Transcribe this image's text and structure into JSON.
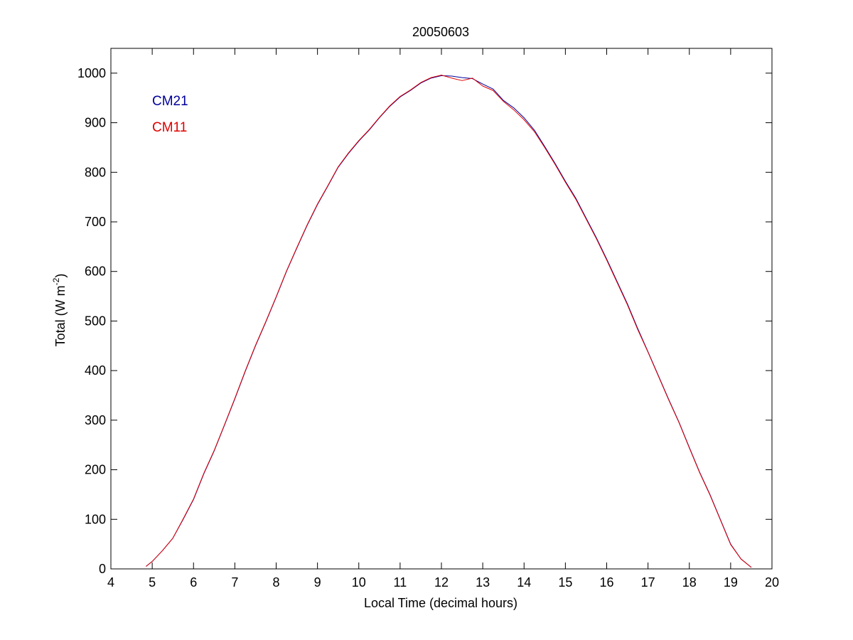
{
  "chart_data": {
    "type": "line",
    "title": "20050603",
    "xlabel": "Local Time (decimal hours)",
    "ylabel": {
      "main": "Total (W m",
      "superscript": "-2",
      "close": ")"
    },
    "xlim": [
      4,
      20
    ],
    "ylim": [
      0,
      1050
    ],
    "xticks": [
      4,
      5,
      6,
      7,
      8,
      9,
      10,
      11,
      12,
      13,
      14,
      15,
      16,
      17,
      18,
      19,
      20
    ],
    "xtick_labels": [
      "4",
      "5",
      "6",
      "7",
      "8",
      "9",
      "10",
      "11",
      "12",
      "13",
      "14",
      "15",
      "16",
      "17",
      "18",
      "19",
      "20"
    ],
    "yticks": [
      0,
      100,
      200,
      300,
      400,
      500,
      600,
      700,
      800,
      900,
      1000
    ],
    "ytick_labels": [
      "0",
      "100",
      "200",
      "300",
      "400",
      "500",
      "600",
      "700",
      "800",
      "900",
      "1000"
    ],
    "grid": false,
    "legend_position": "top-left",
    "series": [
      {
        "name": "CM21",
        "color": "#00009b",
        "x": [
          4.85,
          5.0,
          5.25,
          5.5,
          5.75,
          6.0,
          6.25,
          6.5,
          6.75,
          7.0,
          7.25,
          7.5,
          7.75,
          8.0,
          8.25,
          8.5,
          8.75,
          9.0,
          9.25,
          9.5,
          9.75,
          10.0,
          10.25,
          10.5,
          10.75,
          11.0,
          11.25,
          11.5,
          11.75,
          12.0,
          12.25,
          12.5,
          12.75,
          13.0,
          13.25,
          13.5,
          13.75,
          14.0,
          14.25,
          14.5,
          14.75,
          15.0,
          15.25,
          15.5,
          15.75,
          16.0,
          16.25,
          16.5,
          16.75,
          17.0,
          17.25,
          17.5,
          17.75,
          18.0,
          18.25,
          18.5,
          18.75,
          19.0,
          19.25,
          19.5
        ],
        "y": [
          5,
          15,
          37,
          62,
          100,
          140,
          192,
          238,
          290,
          343,
          398,
          450,
          498,
          548,
          600,
          647,
          693,
          735,
          772,
          810,
          838,
          863,
          885,
          910,
          933,
          952,
          965,
          980,
          990,
          995,
          994,
          991,
          989,
          978,
          968,
          945,
          930,
          910,
          885,
          852,
          818,
          782,
          748,
          708,
          668,
          625,
          580,
          535,
          485,
          438,
          390,
          342,
          296,
          245,
          195,
          150,
          100,
          50,
          20,
          3
        ]
      },
      {
        "name": "CM11",
        "color": "#e00000",
        "x": [
          4.85,
          5.0,
          5.25,
          5.5,
          5.75,
          6.0,
          6.25,
          6.5,
          6.75,
          7.0,
          7.25,
          7.5,
          7.75,
          8.0,
          8.25,
          8.5,
          8.75,
          9.0,
          9.25,
          9.5,
          9.75,
          10.0,
          10.25,
          10.5,
          10.75,
          11.0,
          11.25,
          11.5,
          11.75,
          12.0,
          12.25,
          12.5,
          12.75,
          13.0,
          13.25,
          13.5,
          13.75,
          14.0,
          14.25,
          14.5,
          14.75,
          15.0,
          15.25,
          15.5,
          15.75,
          16.0,
          16.25,
          16.5,
          16.75,
          17.0,
          17.25,
          17.5,
          17.75,
          18.0,
          18.25,
          18.5,
          18.75,
          19.0,
          19.25,
          19.5
        ],
        "y": [
          5,
          15,
          37,
          62,
          101,
          141,
          193,
          239,
          291,
          344,
          399,
          451,
          499,
          549,
          601,
          648,
          694,
          736,
          773,
          811,
          839,
          864,
          886,
          911,
          934,
          953,
          966,
          981,
          991,
          996,
          990,
          985,
          990,
          974,
          965,
          943,
          926,
          906,
          882,
          850,
          816,
          780,
          746,
          706,
          666,
          623,
          578,
          533,
          483,
          437,
          389,
          341,
          295,
          244,
          194,
          149,
          99,
          49,
          20,
          3
        ]
      }
    ]
  }
}
